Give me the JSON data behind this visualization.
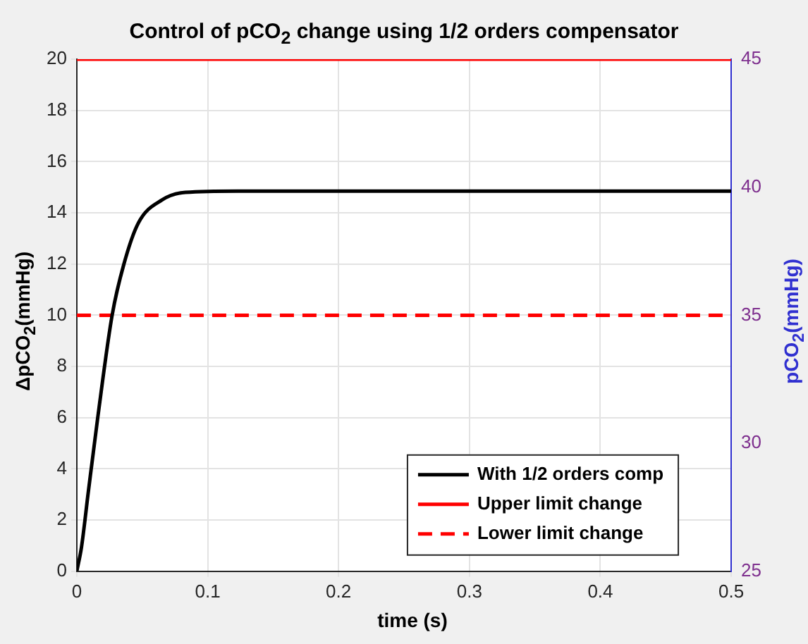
{
  "chart_data": {
    "type": "line",
    "title": "Control of pCO$_{2}$ change using 1/2 orders compensator",
    "xlabel": "time (s)",
    "ylabel": "ΔpCO$_{2}$(mmHg)",
    "y2label": "pCO$_{2}$(mmHg)",
    "xlim": [
      0,
      0.5
    ],
    "xticks": [
      0,
      0.1,
      0.2,
      0.3,
      0.4,
      0.5
    ],
    "ylim": [
      0,
      20
    ],
    "yticks": [
      0,
      2,
      4,
      6,
      8,
      10,
      12,
      14,
      16,
      18,
      20
    ],
    "y2lim": [
      25,
      45
    ],
    "y2ticks": [
      25,
      30,
      35,
      40,
      45
    ],
    "series": [
      {
        "name": "With 1/2 orders comp",
        "color": "#000000",
        "line_style": "solid",
        "x": [
          0,
          0.0036,
          0.0088,
          0.016,
          0.027,
          0.036,
          0.047,
          0.065,
          0.083,
          0.123,
          0.2,
          0.3,
          0.4,
          0.5
        ],
        "values": [
          0,
          0.95,
          3.1,
          6.0,
          10.0,
          12.0,
          13.6,
          14.5,
          14.8,
          14.85,
          14.85,
          14.85,
          14.85,
          14.85
        ]
      },
      {
        "name": "Upper limit change",
        "color": "#ff0000",
        "line_style": "solid",
        "x": [
          0,
          0.5
        ],
        "values": [
          20,
          20
        ]
      },
      {
        "name": "Lower limit change",
        "color": "#ff0000",
        "line_style": "dashed",
        "x": [
          0,
          0.5
        ],
        "values": [
          10,
          10
        ]
      }
    ],
    "grid": true,
    "legend": "bottom right",
    "marker": "none"
  }
}
